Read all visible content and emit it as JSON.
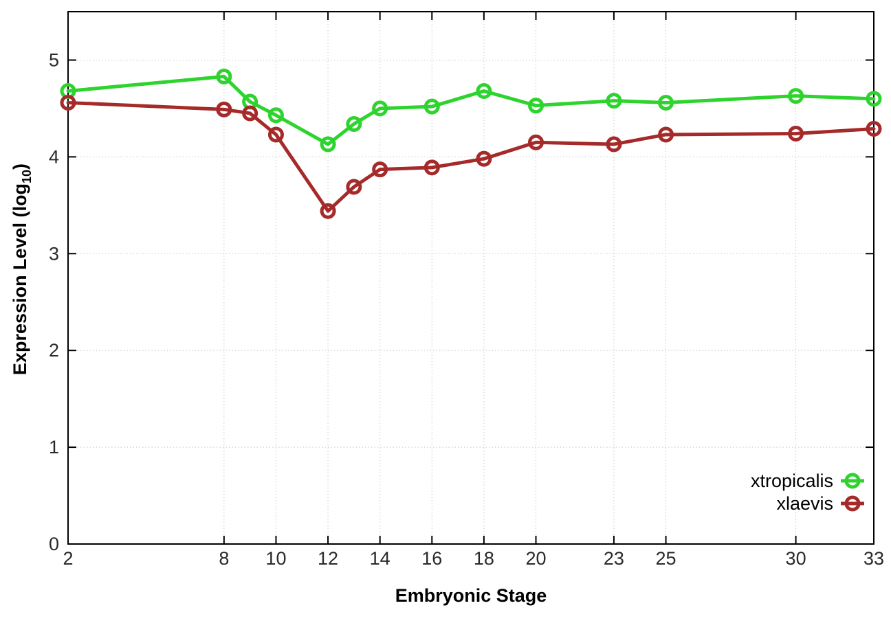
{
  "chart_data": {
    "type": "line",
    "title": "",
    "xlabel": "Embryonic Stage",
    "ylabel": "Expression Level (log10)",
    "ylabel_parts": {
      "pre": "Expression Level (log",
      "sub": "10",
      "post": ")"
    },
    "x": [
      2,
      8,
      9,
      10,
      12,
      13,
      14,
      16,
      18,
      20,
      23,
      25,
      30,
      33
    ],
    "xticks": [
      2,
      8,
      10,
      12,
      14,
      16,
      18,
      20,
      23,
      25,
      30,
      33
    ],
    "yticks": [
      0,
      1,
      2,
      3,
      4,
      5
    ],
    "xlim": [
      2,
      33
    ],
    "ylim": [
      0,
      5.5
    ],
    "grid": true,
    "grid_style": "dotted",
    "legend_position": "inside-bottom-right",
    "background_color": "#ffffff",
    "border_color": "#000000",
    "grid_color": "#c8c8c8",
    "series": [
      {
        "name": "xtropicalis",
        "color": "#2ED32E",
        "marker": "open-circle",
        "values": [
          4.68,
          4.83,
          4.57,
          4.43,
          4.13,
          4.34,
          4.5,
          4.52,
          4.68,
          4.53,
          4.58,
          4.56,
          4.63,
          4.6
        ]
      },
      {
        "name": "xlaevis",
        "color": "#A52A2A",
        "marker": "open-circle",
        "values": [
          4.56,
          4.49,
          4.45,
          4.23,
          3.44,
          3.69,
          3.87,
          3.89,
          3.98,
          4.15,
          4.13,
          4.23,
          4.24,
          4.29
        ]
      }
    ]
  }
}
